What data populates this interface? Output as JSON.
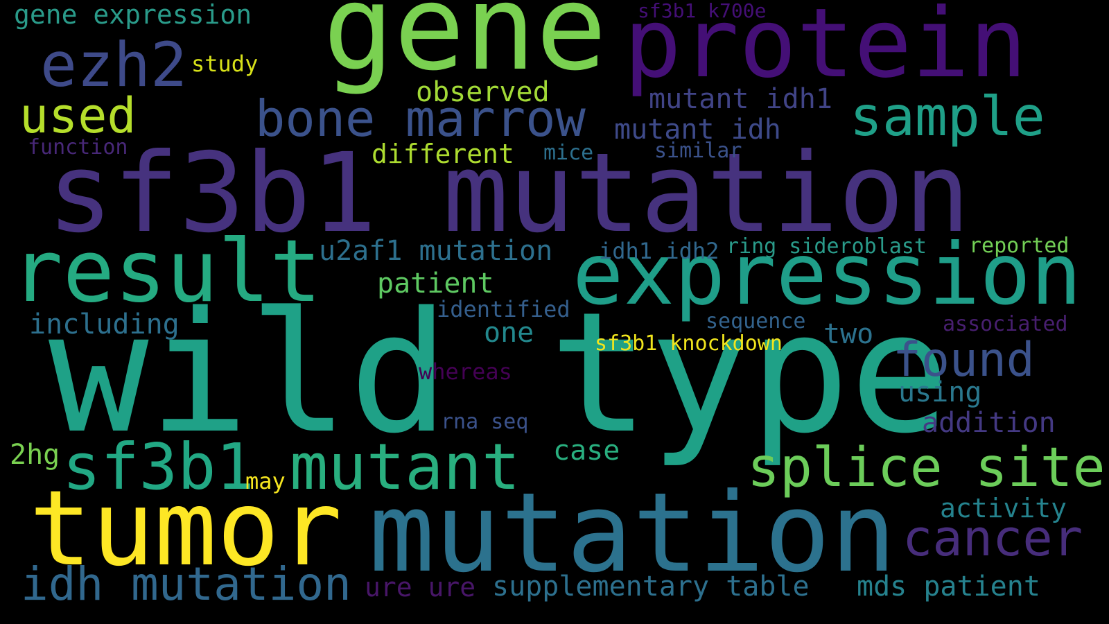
{
  "background": "#000000",
  "colormap": "viridis",
  "words": [
    {
      "text": "wild type",
      "color": "#1fa187"
    },
    {
      "text": "sf3b1 mutation",
      "color": "#46327e"
    },
    {
      "text": "mutation",
      "color": "#2c728e"
    },
    {
      "text": "gene",
      "color": "#7ad151"
    },
    {
      "text": "protein",
      "color": "#440f76"
    },
    {
      "text": "tumor",
      "color": "#fde725"
    },
    {
      "text": "expression",
      "color": "#1f9e89"
    },
    {
      "text": "result",
      "color": "#25ab82"
    },
    {
      "text": "sf3b1",
      "color": "#22a884"
    },
    {
      "text": "mutant",
      "color": "#29af7f"
    },
    {
      "text": "splice site",
      "color": "#6ccd5a"
    },
    {
      "text": "cancer",
      "color": "#472d7b"
    },
    {
      "text": "idh mutation",
      "color": "#31688e"
    },
    {
      "text": "ezh2",
      "color": "#3e4a89"
    },
    {
      "text": "bone marrow",
      "color": "#3b528b"
    },
    {
      "text": "sample",
      "color": "#1fa088"
    },
    {
      "text": "found",
      "color": "#3b528b"
    },
    {
      "text": "used",
      "color": "#b5de2b"
    },
    {
      "text": "supplementary table",
      "color": "#2d708e"
    },
    {
      "text": "mds patient",
      "color": "#26828e"
    },
    {
      "text": "u2af1 mutation",
      "color": "#2d708e"
    },
    {
      "text": "mutant idh1",
      "color": "#414487"
    },
    {
      "text": "mutant idh",
      "color": "#3e4a89"
    },
    {
      "text": "observed",
      "color": "#a2da37"
    },
    {
      "text": "patient",
      "color": "#5ec962"
    },
    {
      "text": "different",
      "color": "#addc30"
    },
    {
      "text": "gene expression",
      "color": "#2a9b8a"
    },
    {
      "text": "addition",
      "color": "#443983"
    },
    {
      "text": "activity",
      "color": "#25838e"
    },
    {
      "text": "using",
      "color": "#2a788e"
    },
    {
      "text": "two",
      "color": "#2c728e"
    },
    {
      "text": "one",
      "color": "#23898e"
    },
    {
      "text": "case",
      "color": "#29af7f"
    },
    {
      "text": "ring sideroblast",
      "color": "#2a9b8a"
    },
    {
      "text": "reported",
      "color": "#73d056"
    },
    {
      "text": "idh1 idh2",
      "color": "#31688e"
    },
    {
      "text": "including",
      "color": "#2d708e"
    },
    {
      "text": "identified",
      "color": "#355f8d"
    },
    {
      "text": "sequence",
      "color": "#33638d"
    },
    {
      "text": "associated",
      "color": "#481f70"
    },
    {
      "text": "sf3b1 knockdown",
      "color": "#f1e51d"
    },
    {
      "text": "whereas",
      "color": "#440154"
    },
    {
      "text": "rna seq",
      "color": "#3b528b"
    },
    {
      "text": "ure ure",
      "color": "#481668"
    },
    {
      "text": "2hg",
      "color": "#7ad151"
    },
    {
      "text": "may",
      "color": "#f6e620"
    },
    {
      "text": "study",
      "color": "#d8e219"
    },
    {
      "text": "function",
      "color": "#482878"
    },
    {
      "text": "mice",
      "color": "#2d708e"
    },
    {
      "text": "similar",
      "color": "#3b528b"
    },
    {
      "text": "sf3b1 k700e",
      "color": "#440f76"
    }
  ]
}
